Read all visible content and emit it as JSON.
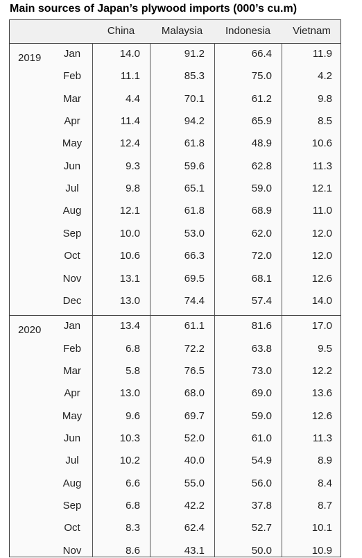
{
  "title": "Main sources of Japan’s plywood imports (000’s cu.m)",
  "table": {
    "header": [
      "China",
      "Malaysia",
      "Indonesia",
      "Vietnam"
    ],
    "groups": [
      {
        "year": "2019",
        "rows": [
          [
            "Jan",
            "14.0",
            "91.2",
            "66.4",
            "11.9"
          ],
          [
            "Feb",
            "11.1",
            "85.3",
            "75.0",
            "4.2"
          ],
          [
            "Mar",
            "4.4",
            "70.1",
            "61.2",
            "9.8"
          ],
          [
            "Apr",
            "11.4",
            "94.2",
            "65.9",
            "8.5"
          ],
          [
            "May",
            "12.4",
            "61.8",
            "48.9",
            "10.6"
          ],
          [
            "Jun",
            "9.3",
            "59.6",
            "62.8",
            "11.3"
          ],
          [
            "Jul",
            "9.8",
            "65.1",
            "59.0",
            "12.1"
          ],
          [
            "Aug",
            "12.1",
            "61.8",
            "68.9",
            "11.0"
          ],
          [
            "Sep",
            "10.0",
            "53.0",
            "62.0",
            "12.0"
          ],
          [
            "Oct",
            "10.6",
            "66.3",
            "72.0",
            "12.0"
          ],
          [
            "Nov",
            "13.1",
            "69.5",
            "68.1",
            "12.6"
          ],
          [
            "Dec",
            "13.0",
            "74.4",
            "57.4",
            "14.0"
          ]
        ]
      },
      {
        "year": "2020",
        "rows": [
          [
            "Jan",
            "13.4",
            "61.1",
            "81.6",
            "17.0"
          ],
          [
            "Feb",
            "6.8",
            "72.2",
            "63.8",
            "9.5"
          ],
          [
            "Mar",
            "5.8",
            "76.5",
            "73.0",
            "12.2"
          ],
          [
            "Apr",
            "13.0",
            "68.0",
            "69.0",
            "13.6"
          ],
          [
            "May",
            "9.6",
            "69.7",
            "59.0",
            "12.6"
          ],
          [
            "Jun",
            "10.3",
            "52.0",
            "61.0",
            "11.3"
          ],
          [
            "Jul",
            "10.2",
            "40.0",
            "54.9",
            "8.9"
          ],
          [
            "Aug",
            "6.6",
            "55.0",
            "56.0",
            "8.4"
          ],
          [
            "Sep",
            "6.8",
            "42.2",
            "37.8",
            "8.7"
          ],
          [
            "Oct",
            "8.3",
            "62.4",
            "52.7",
            "10.1"
          ],
          [
            "Nov",
            "8.6",
            "43.1",
            "50.0",
            "10.9"
          ]
        ]
      }
    ]
  }
}
